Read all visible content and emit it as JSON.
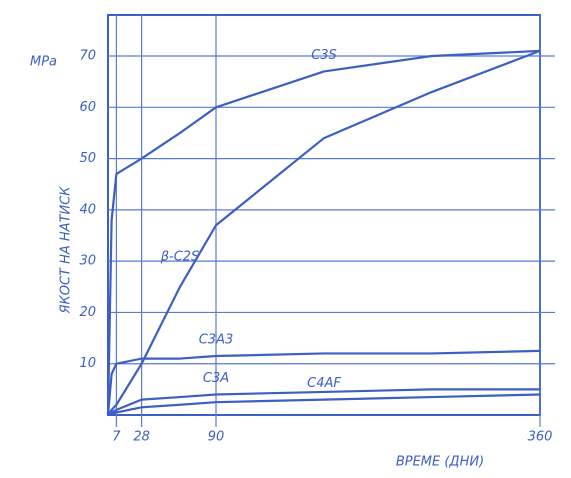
{
  "chart_data": {
    "type": "line",
    "unit": "MPa",
    "x_label": "ВРЕМЕ (ДНИ)",
    "y_label": "ЯКОСТ НА НАТИСК",
    "x": [
      0,
      3,
      7,
      28,
      60,
      90,
      180,
      270,
      360
    ],
    "series": [
      {
        "name": "C3S",
        "color": "#3d5fc4",
        "values": [
          0,
          38,
          47,
          50,
          55,
          60,
          67,
          70,
          71
        ]
      },
      {
        "name": "β-C2S",
        "color": "#3d5fc4",
        "values": [
          0,
          1,
          2,
          10,
          25,
          37,
          54,
          63,
          71
        ]
      },
      {
        "name": "C3A3",
        "color": "#3d5fc4",
        "values": [
          0,
          8,
          10,
          11,
          11,
          11.5,
          12,
          12,
          12.5
        ]
      },
      {
        "name": "C3A",
        "color": "#3d5fc4",
        "values": [
          0,
          0.5,
          1,
          3,
          3.5,
          4,
          4.5,
          5,
          5
        ]
      },
      {
        "name": "C4AF",
        "color": "#3d5fc4",
        "values": [
          0,
          0.2,
          0.5,
          1.5,
          2,
          2.5,
          3,
          3.5,
          4
        ]
      }
    ],
    "xlim": [
      0,
      360
    ],
    "ylim": [
      0,
      78
    ],
    "xticks": [
      7,
      28,
      90,
      360
    ],
    "yticks": [
      10,
      20,
      30,
      40,
      50,
      60,
      70
    ],
    "grid": true
  }
}
